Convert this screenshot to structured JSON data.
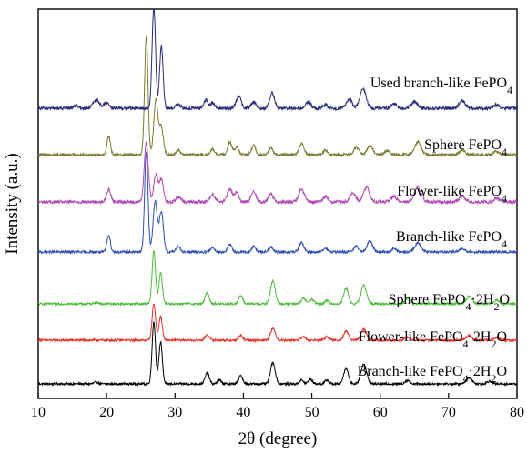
{
  "chart_data": {
    "type": "line",
    "xlabel": "2θ (degree)",
    "ylabel": "Intensity (a.u.)",
    "xlim": [
      10,
      80
    ],
    "xticks": [
      10,
      20,
      30,
      40,
      50,
      60,
      70,
      80
    ],
    "yticks_visible": false,
    "grid": false,
    "legend": "inline labels right of each trace",
    "series": [
      {
        "name": "Branch-like FePO₄·2H₂O",
        "name_main": "Branch-like FePO",
        "name_sub": "4",
        "name_tail": "·2H",
        "name_sub2": "2",
        "name_tail2": "O",
        "color": "#000000",
        "offset": 0,
        "noise": 1.2,
        "peaks": [
          [
            18.5,
            2,
            0.3
          ],
          [
            26.9,
            68,
            0.25
          ],
          [
            27.9,
            46,
            0.25
          ],
          [
            34.7,
            12,
            0.3
          ],
          [
            36.5,
            4,
            0.3
          ],
          [
            39.6,
            9,
            0.3
          ],
          [
            44.3,
            23,
            0.35
          ],
          [
            48.5,
            4,
            0.3
          ],
          [
            49.8,
            5,
            0.3
          ],
          [
            52.2,
            4,
            0.3
          ],
          [
            55.0,
            17,
            0.35
          ],
          [
            57.6,
            22,
            0.4
          ],
          [
            64.0,
            4,
            0.35
          ],
          [
            73.0,
            7,
            0.4
          ],
          [
            76.0,
            3,
            0.35
          ]
        ]
      },
      {
        "name": "Flower-like FePO₄·2H₂O",
        "name_main": "Flower-like FePO",
        "name_sub": "4",
        "name_tail": "·2H",
        "name_sub2": "2",
        "name_tail2": "O",
        "color": "#e8302a",
        "offset": 48,
        "noise": 1.2,
        "peaks": [
          [
            26.9,
            40,
            0.25
          ],
          [
            27.9,
            26,
            0.25
          ],
          [
            34.7,
            6,
            0.3
          ],
          [
            39.6,
            5,
            0.3
          ],
          [
            44.3,
            13,
            0.35
          ],
          [
            48.8,
            4,
            0.3
          ],
          [
            52.2,
            4,
            0.3
          ],
          [
            55.0,
            10,
            0.35
          ],
          [
            57.6,
            12,
            0.4
          ],
          [
            64.0,
            3,
            0.35
          ],
          [
            73.0,
            5,
            0.4
          ],
          [
            77.0,
            3,
            0.35
          ]
        ]
      },
      {
        "name": "Sphere FePO₄·2H₂O",
        "name_main": "Sphere FePO",
        "name_sub": "4",
        "name_tail": "·2H",
        "name_sub2": "2",
        "name_tail2": "O",
        "color": "#4ebc3c",
        "offset": 88,
        "noise": 1.2,
        "peaks": [
          [
            18.5,
            2,
            0.3
          ],
          [
            26.9,
            58,
            0.25
          ],
          [
            27.9,
            34,
            0.25
          ],
          [
            34.7,
            12,
            0.3
          ],
          [
            39.6,
            9,
            0.3
          ],
          [
            44.3,
            25,
            0.35
          ],
          [
            48.8,
            6,
            0.3
          ],
          [
            50.0,
            5,
            0.3
          ],
          [
            52.2,
            4,
            0.3
          ],
          [
            55.0,
            17,
            0.35
          ],
          [
            57.6,
            20,
            0.4
          ],
          [
            64.0,
            6,
            0.35
          ],
          [
            73.0,
            8,
            0.4
          ],
          [
            77.0,
            4,
            0.35
          ]
        ]
      },
      {
        "name": "Branch-like FePO₄",
        "name_main": "Branch-like FePO",
        "name_sub": "4",
        "name_tail": "",
        "name_sub2": "",
        "name_tail2": "",
        "color": "#2b4db5",
        "offset": 145,
        "noise": 1.4,
        "peaks": [
          [
            20.3,
            19,
            0.25
          ],
          [
            25.8,
            110,
            0.25
          ],
          [
            27.1,
            56,
            0.3
          ],
          [
            28.0,
            44,
            0.3
          ],
          [
            30.5,
            6,
            0.3
          ],
          [
            35.5,
            5,
            0.3
          ],
          [
            38.0,
            8,
            0.3
          ],
          [
            41.5,
            6,
            0.3
          ],
          [
            44.0,
            5,
            0.3
          ],
          [
            48.5,
            10,
            0.35
          ],
          [
            52.0,
            4,
            0.3
          ],
          [
            56.5,
            6,
            0.35
          ],
          [
            58.5,
            12,
            0.4
          ],
          [
            62.0,
            4,
            0.35
          ],
          [
            65.5,
            10,
            0.45
          ],
          [
            72.0,
            4,
            0.4
          ]
        ]
      },
      {
        "name": "Flower-like FePO₄",
        "name_main": "Flower-like FePO",
        "name_sub": "4",
        "name_tail": "",
        "name_sub2": "",
        "name_tail2": "",
        "color": "#b04ab6",
        "offset": 200,
        "noise": 1.8,
        "peaks": [
          [
            20.3,
            14,
            0.3
          ],
          [
            25.8,
            65,
            0.3
          ],
          [
            27.2,
            30,
            0.3
          ],
          [
            28.0,
            25,
            0.3
          ],
          [
            30.5,
            6,
            0.35
          ],
          [
            35.5,
            8,
            0.4
          ],
          [
            38.0,
            14,
            0.35
          ],
          [
            39.0,
            10,
            0.35
          ],
          [
            41.5,
            12,
            0.35
          ],
          [
            44.0,
            9,
            0.35
          ],
          [
            48.5,
            14,
            0.4
          ],
          [
            52.0,
            6,
            0.35
          ],
          [
            56.0,
            10,
            0.4
          ],
          [
            58.0,
            16,
            0.45
          ],
          [
            62.0,
            6,
            0.4
          ],
          [
            65.5,
            16,
            0.5
          ],
          [
            72.0,
            6,
            0.45
          ],
          [
            77.0,
            4,
            0.4
          ]
        ]
      },
      {
        "name": "Sphere FePO₄",
        "name_main": "Sphere FePO",
        "name_sub": "4",
        "name_tail": "",
        "name_sub2": "",
        "name_tail2": "",
        "color": "#7a7a2e",
        "offset": 252,
        "noise": 1.4,
        "peaks": [
          [
            20.3,
            20,
            0.25
          ],
          [
            25.8,
            130,
            0.25
          ],
          [
            27.2,
            60,
            0.3
          ],
          [
            28.0,
            30,
            0.3
          ],
          [
            30.5,
            5,
            0.3
          ],
          [
            35.5,
            6,
            0.3
          ],
          [
            38.0,
            14,
            0.3
          ],
          [
            39.0,
            8,
            0.3
          ],
          [
            41.5,
            10,
            0.3
          ],
          [
            44.0,
            7,
            0.3
          ],
          [
            48.5,
            12,
            0.35
          ],
          [
            52.0,
            5,
            0.3
          ],
          [
            56.5,
            8,
            0.35
          ],
          [
            58.5,
            10,
            0.4
          ],
          [
            61.0,
            4,
            0.35
          ],
          [
            65.5,
            14,
            0.45
          ],
          [
            72.0,
            5,
            0.4
          ],
          [
            77.0,
            4,
            0.35
          ]
        ]
      },
      {
        "name": "Used branch-like FePO₄",
        "name_main": "Used branch-like FePO",
        "name_sub": "4",
        "name_tail": "",
        "name_sub2": "",
        "name_tail2": "",
        "color": "#2a2a7a",
        "offset": 303,
        "noise": 1.8,
        "peaks": [
          [
            15.5,
            3,
            0.4
          ],
          [
            18.5,
            9,
            0.45
          ],
          [
            20.0,
            6,
            0.4
          ],
          [
            26.9,
            112,
            0.25
          ],
          [
            28.0,
            68,
            0.25
          ],
          [
            30.5,
            4,
            0.35
          ],
          [
            34.5,
            9,
            0.3
          ],
          [
            35.5,
            6,
            0.3
          ],
          [
            39.3,
            13,
            0.35
          ],
          [
            41.5,
            7,
            0.35
          ],
          [
            44.2,
            17,
            0.35
          ],
          [
            49.5,
            7,
            0.35
          ],
          [
            52.0,
            4,
            0.35
          ],
          [
            55.5,
            10,
            0.4
          ],
          [
            57.5,
            21,
            0.45
          ],
          [
            62.0,
            5,
            0.4
          ],
          [
            65.0,
            7,
            0.45
          ],
          [
            72.0,
            8,
            0.45
          ],
          [
            77.0,
            4,
            0.4
          ]
        ]
      }
    ]
  }
}
